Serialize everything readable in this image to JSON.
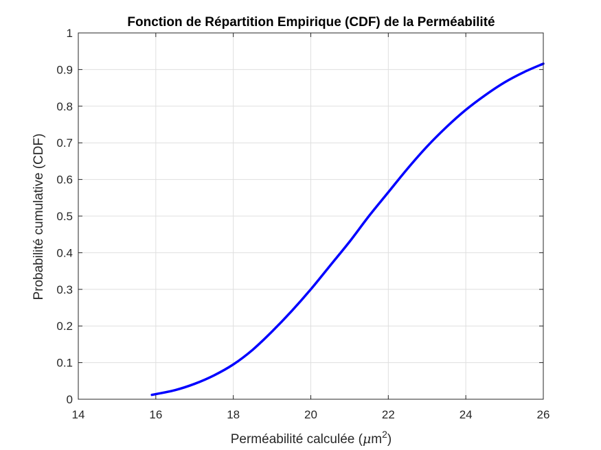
{
  "chart_data": {
    "type": "line",
    "title": "Fonction de Répartition Empirique (CDF) de la Perméabilité",
    "xlabel": "Perméabilité calculée (",
    "xlabel_unit_greek": "μ",
    "xlabel_unit_rest": "m",
    "xlabel_unit_power": "2",
    "xlabel_close": ")",
    "ylabel": "Probabilité cumulative (CDF)",
    "xlim": [
      14,
      26
    ],
    "ylim": [
      0,
      1
    ],
    "xticks": [
      14,
      16,
      18,
      20,
      22,
      24,
      26
    ],
    "xtick_labels": [
      "14",
      "16",
      "18",
      "20",
      "22",
      "24",
      "26"
    ],
    "yticks": [
      0,
      0.1,
      0.2,
      0.3,
      0.4,
      0.5,
      0.6,
      0.7,
      0.8,
      0.9,
      1
    ],
    "ytick_labels": [
      "0",
      "0.1",
      "0.2",
      "0.3",
      "0.4",
      "0.5",
      "0.6",
      "0.7",
      "0.8",
      "0.9",
      "1"
    ],
    "grid": true,
    "series": [
      {
        "color": "#0000ff",
        "x": [
          15.9,
          16.5,
          17.0,
          17.5,
          18.0,
          18.5,
          19.0,
          19.5,
          20.0,
          20.5,
          21.0,
          21.5,
          22.0,
          22.5,
          23.0,
          23.5,
          24.0,
          24.5,
          25.0,
          25.5,
          26.0
        ],
        "y": [
          0.012,
          0.025,
          0.042,
          0.065,
          0.095,
          0.135,
          0.185,
          0.24,
          0.3,
          0.365,
          0.43,
          0.5,
          0.565,
          0.63,
          0.69,
          0.743,
          0.79,
          0.83,
          0.865,
          0.893,
          0.916
        ]
      }
    ]
  }
}
